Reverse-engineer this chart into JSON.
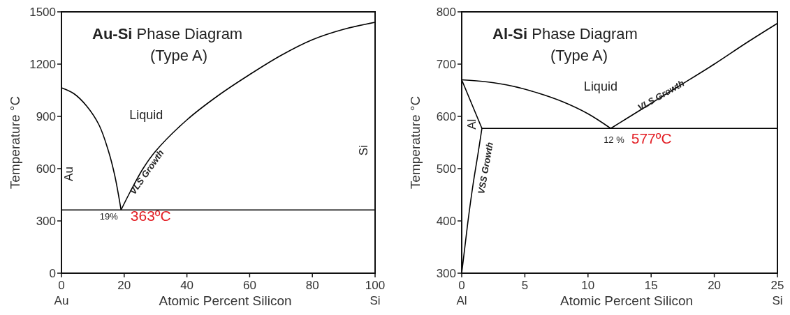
{
  "chart_data": [
    {
      "type": "line",
      "title": "Au-Si Phase Diagram",
      "subtitle": "(Type A)",
      "xlabel": "Atomic Percent Silicon",
      "ylabel": "Temperature °C",
      "xlim": [
        0,
        100
      ],
      "ylim": [
        0,
        1500
      ],
      "xticks": [
        {
          "value": 0,
          "label": "0\nAu"
        },
        20,
        40,
        60,
        80,
        {
          "value": 100,
          "label": "100\nSi"
        }
      ],
      "yticks": [
        0,
        300,
        600,
        900,
        1200,
        1500
      ],
      "grid": false,
      "marker": "none",
      "line_style": "solid",
      "series": [
        {
          "color": "#000000",
          "x": [
            0,
            4,
            8,
            12,
            15,
            17,
            19
          ],
          "values": [
            1064,
            1030,
            960,
            850,
            700,
            560,
            363
          ]
        },
        {
          "color": "#000000",
          "x": [
            19,
            22,
            26,
            30,
            40,
            50,
            60,
            70,
            80,
            90,
            100
          ],
          "values": [
            363,
            470,
            600,
            700,
            880,
            1020,
            1140,
            1250,
            1340,
            1400,
            1440
          ]
        },
        {
          "color": "#000000",
          "x": [
            0,
            100
          ],
          "values": [
            363,
            363
          ]
        }
      ],
      "annotations": [
        "Liquid",
        "VLS Growth",
        "Au",
        "Si",
        "19%",
        "363ºC"
      ]
    },
    {
      "type": "line",
      "title": "Al-Si Phase Diagram",
      "subtitle": "(Type A)",
      "xlabel": "Atomic Percent Silicon",
      "ylabel": "Temperature °C",
      "xlim": [
        0,
        25
      ],
      "ylim": [
        300,
        800
      ],
      "xticks": [
        {
          "value": 0,
          "label": "0\nAl"
        },
        5,
        10,
        15,
        20,
        {
          "value": 25,
          "label": "25\nSi"
        }
      ],
      "yticks": [
        300,
        400,
        500,
        600,
        700,
        800
      ],
      "grid": false,
      "marker": "none",
      "line_style": "solid",
      "series": [
        {
          "color": "#000000",
          "x": [
            0,
            2,
            4,
            6,
            8,
            10,
            11.8
          ],
          "values": [
            670,
            666,
            658,
            645,
            628,
            605,
            577
          ]
        },
        {
          "color": "#000000",
          "x": [
            11.8,
            13,
            15,
            17,
            20,
            22.5,
            25
          ],
          "values": [
            577,
            595,
            625,
            655,
            700,
            740,
            778
          ]
        },
        {
          "color": "#000000",
          "x": [
            1.6,
            25
          ],
          "values": [
            577,
            577
          ]
        },
        {
          "color": "#000000",
          "x": [
            0,
            1.6
          ],
          "values": [
            670,
            577
          ]
        },
        {
          "color": "#000000",
          "x": [
            1.6,
            1.3,
            0.9,
            0.5,
            0.2,
            0
          ],
          "values": [
            577,
            530,
            470,
            400,
            340,
            300
          ]
        }
      ],
      "annotations": [
        "Liquid",
        "VLS Growth",
        "Al",
        "VSS Growth",
        "12 %",
        "577ºC"
      ]
    }
  ]
}
